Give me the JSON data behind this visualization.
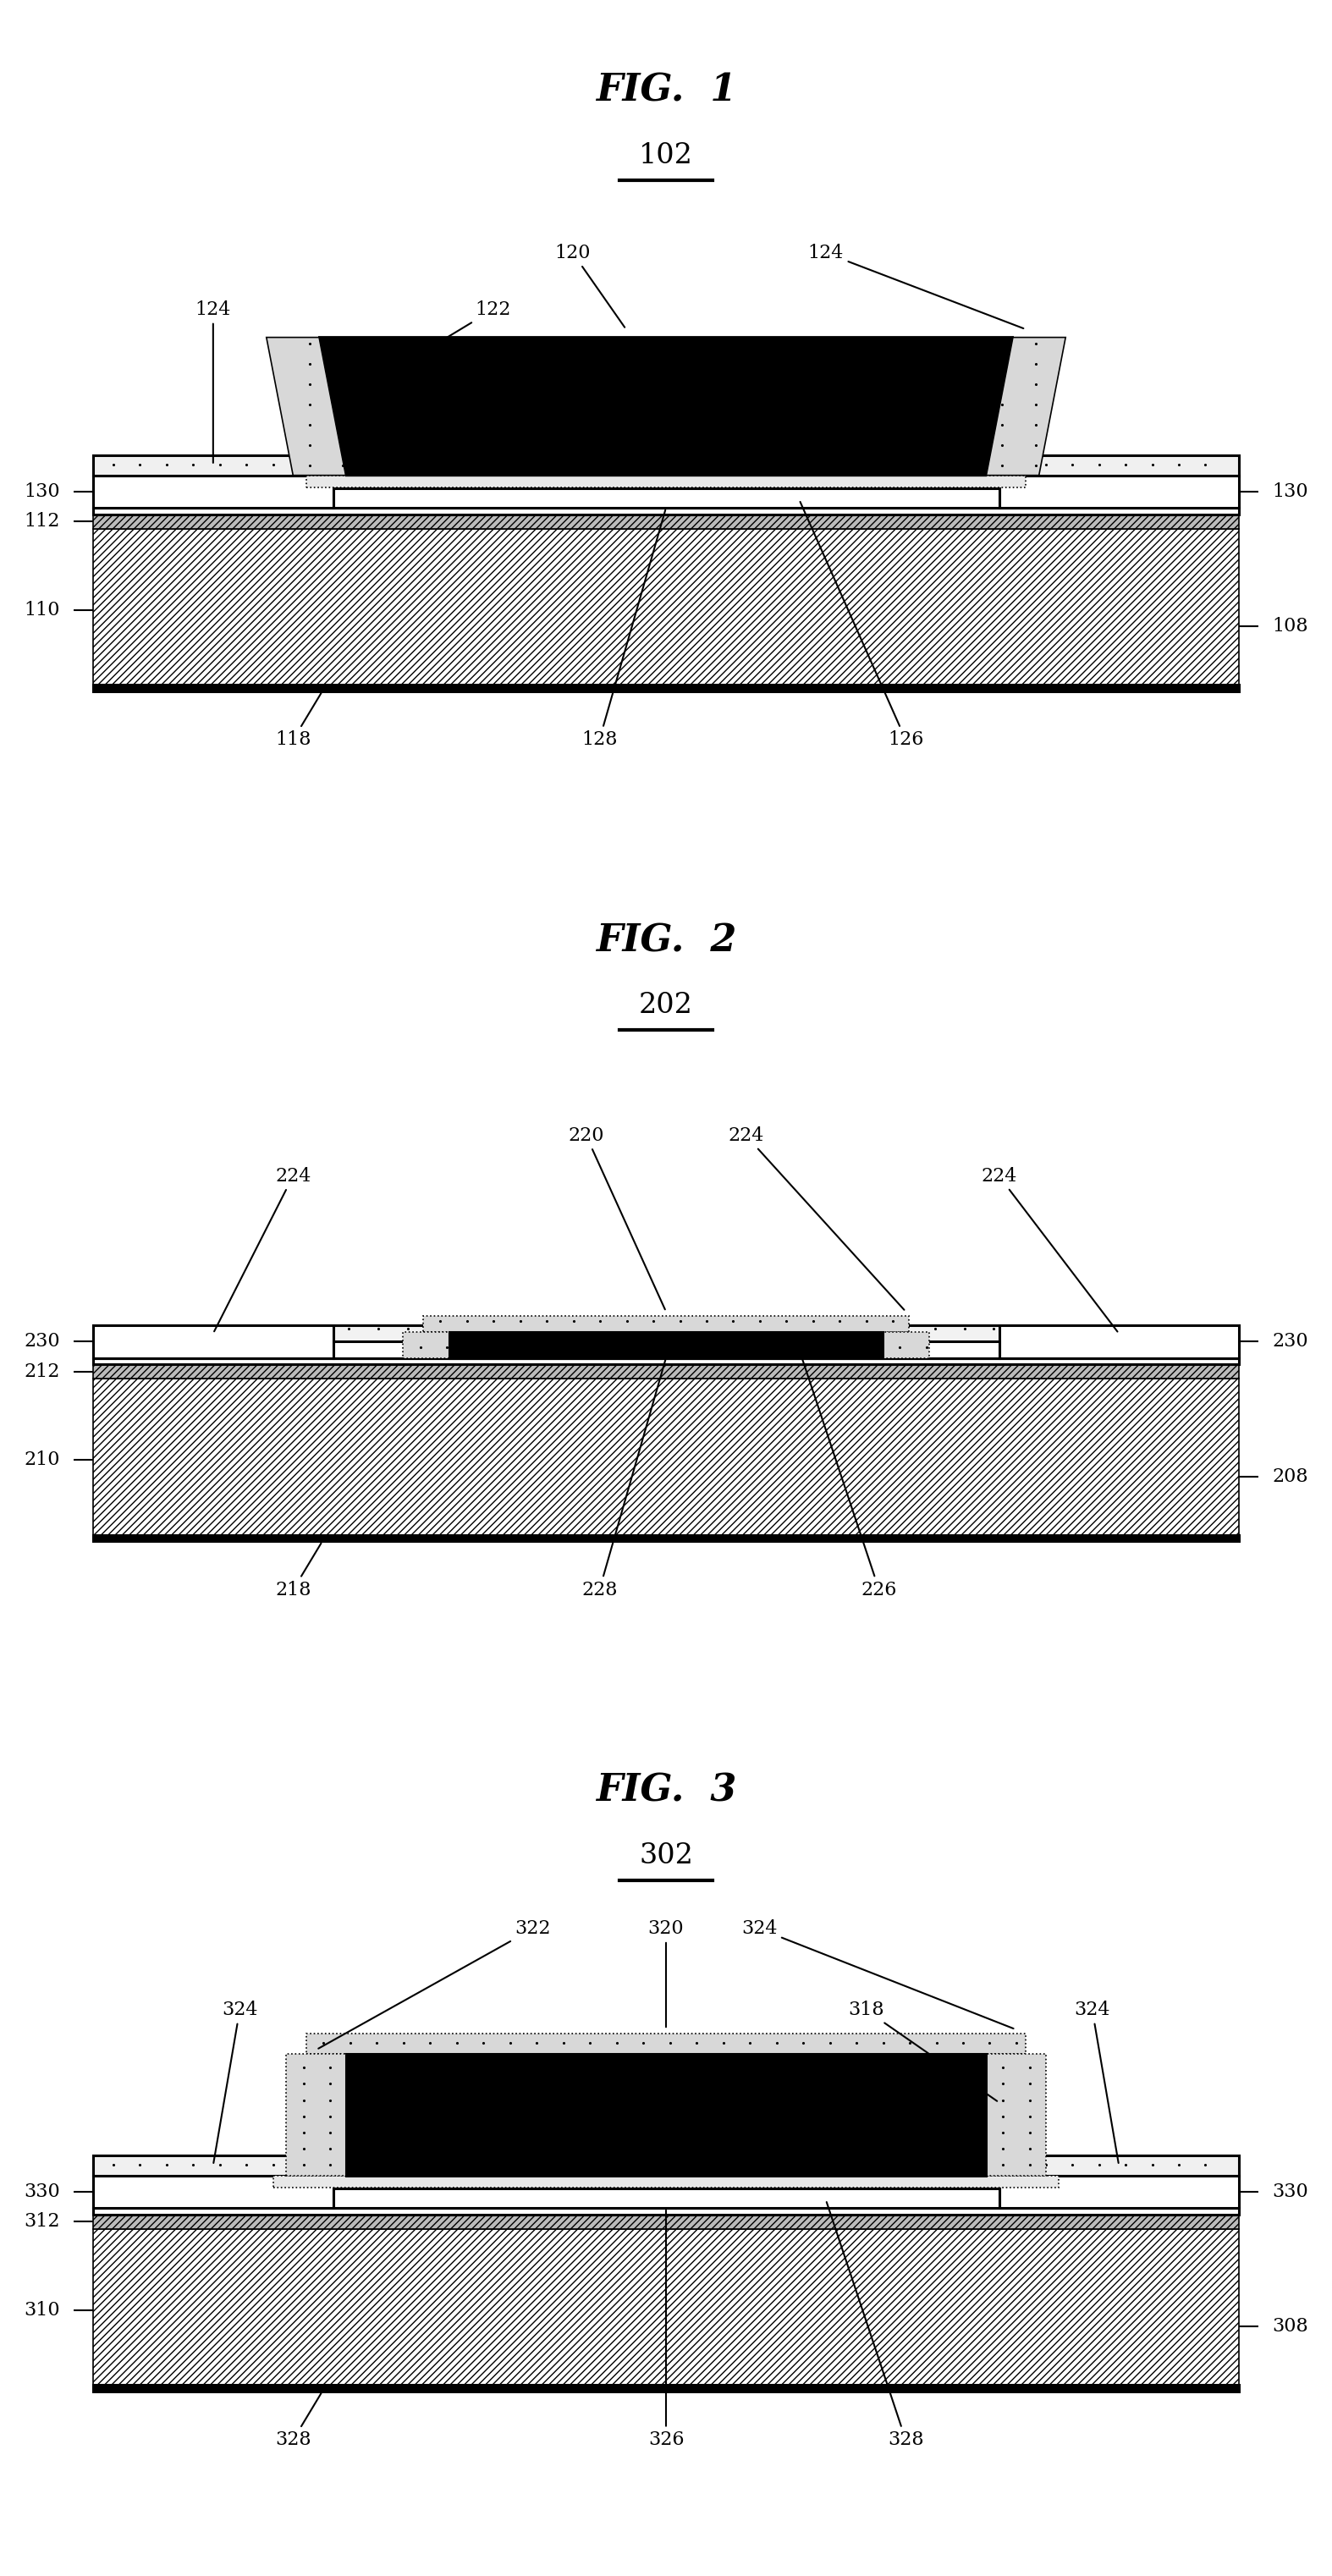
{
  "bg_color": "#ffffff",
  "fig_width": 15.74,
  "fig_height": 30.44,
  "fig1_title": "FIG.  1",
  "fig1_label": "102",
  "fig2_title": "FIG.  2",
  "fig2_label": "202",
  "fig3_title": "FIG.  3",
  "fig3_label": "302",
  "lw_main": 2.2,
  "lw_thin": 1.2,
  "fontsize_title": 32,
  "fontsize_label": 24,
  "fontsize_ref": 16
}
